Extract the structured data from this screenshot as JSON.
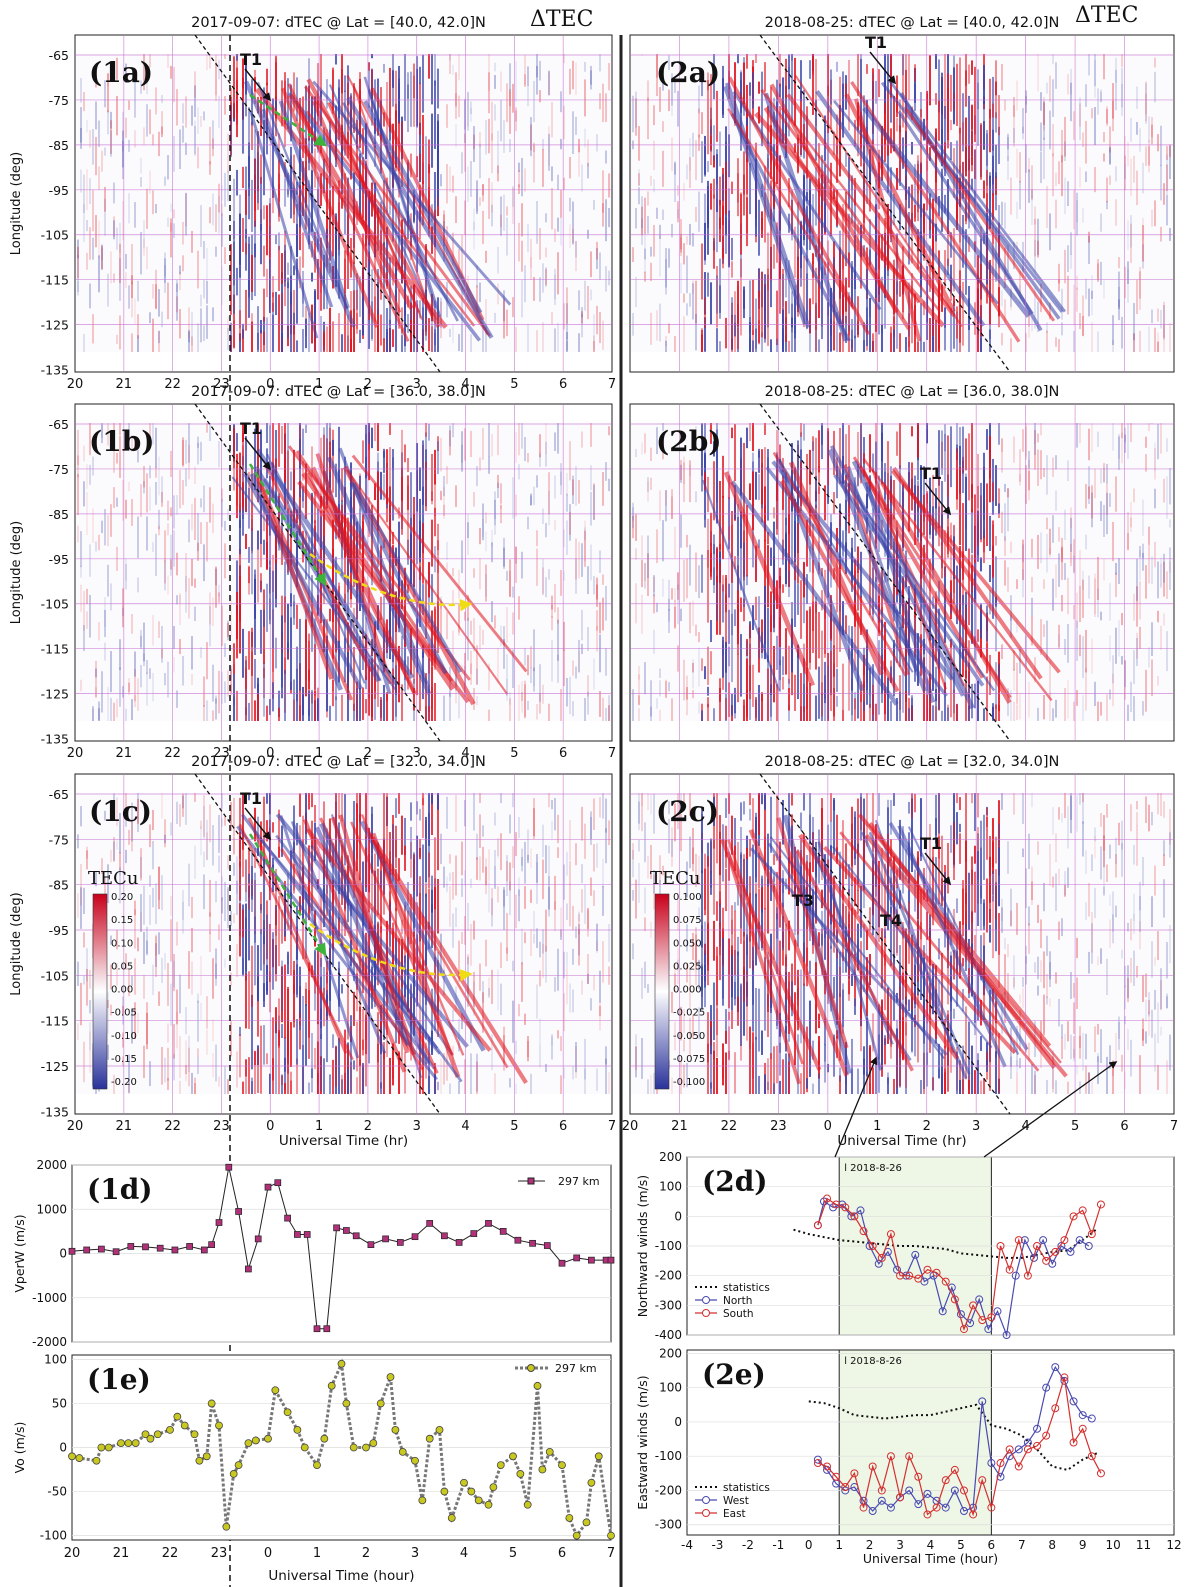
{
  "colors": {
    "red": "#e0141e",
    "blue": "#3a44a8",
    "grid": "#c86ed2",
    "green": "#3cb43c",
    "yellow": "#f0dc14",
    "statistics": "#111111",
    "north_west": "#4a4ab0",
    "south_east": "#d43030",
    "vperw": "#b0307a",
    "vo_marker": "#c8c820",
    "shade": "#eef6e6"
  },
  "delta_tec_label": "ΔTEC",
  "colorbar_label": "TECu",
  "chart_data": [
    {
      "id": "1a",
      "type": "heatmap",
      "panel_label": "(1a)",
      "title": "2017-09-07: dTEC @   Lat = [40.0, 42.0]N",
      "ylabel": "Longitude (deg)",
      "xlabel": "",
      "x_ticks": [
        "20",
        "21",
        "22",
        "23",
        "0",
        "1",
        "2",
        "3",
        "4",
        "5",
        "6",
        "7"
      ],
      "y_ticks": [
        "-65",
        "-75",
        "-85",
        "-95",
        "-105",
        "-115",
        "-125",
        "-135"
      ],
      "ylim": [
        -135,
        -60
      ],
      "annotations": [
        "T1"
      ]
    },
    {
      "id": "1b",
      "type": "heatmap",
      "panel_label": "(1b)",
      "title": "2017-09-07: dTEC @   Lat = [36.0, 38.0]N",
      "ylabel": "Longitude (deg)",
      "xlabel": "",
      "x_ticks": [
        "20",
        "21",
        "22",
        "23",
        "0",
        "1",
        "2",
        "3",
        "4",
        "5",
        "6",
        "7"
      ],
      "y_ticks": [
        "-65",
        "-75",
        "-85",
        "-95",
        "-105",
        "-115",
        "-125",
        "-135"
      ],
      "ylim": [
        -135,
        -60
      ],
      "annotations": [
        "T1"
      ]
    },
    {
      "id": "1c",
      "type": "heatmap",
      "panel_label": "(1c)",
      "title": "2017-09-07: dTEC @   Lat = [32.0, 34.0]N",
      "ylabel": "Longitude (deg)",
      "xlabel": "Universal Time (hr)",
      "x_ticks": [
        "20",
        "21",
        "22",
        "23",
        "0",
        "1",
        "2",
        "3",
        "4",
        "5",
        "6",
        "7"
      ],
      "y_ticks": [
        "-65",
        "-75",
        "-85",
        "-95",
        "-105",
        "-115",
        "-125",
        "-135"
      ],
      "ylim": [
        -135,
        -60
      ],
      "colorbar_ticks": [
        "0.20",
        "0.15",
        "0.10",
        "0.05",
        "0.00",
        "-0.05",
        "-0.10",
        "-0.15",
        "-0.20"
      ],
      "annotations": [
        "T1"
      ]
    },
    {
      "id": "2a",
      "type": "heatmap",
      "panel_label": "(2a)",
      "title": "2018-08-25: dTEC @   Lat = [40.0, 42.0]N",
      "annotations": [
        "T1"
      ]
    },
    {
      "id": "2b",
      "type": "heatmap",
      "panel_label": "(2b)",
      "title": "2018-08-25: dTEC @   Lat = [36.0, 38.0]N",
      "annotations": [
        "T1"
      ]
    },
    {
      "id": "2c",
      "type": "heatmap",
      "panel_label": "(2c)",
      "title": "2018-08-25: dTEC @   Lat = [32.0, 34.0]N",
      "xlabel": "Universal Time (hr)",
      "x_ticks": [
        "20",
        "21",
        "22",
        "23",
        "0",
        "1",
        "2",
        "3",
        "4",
        "5",
        "6",
        "7"
      ],
      "colorbar_ticks": [
        "0.100",
        "0.075",
        "0.050",
        "0.025",
        "0.000",
        "-0.025",
        "-0.050",
        "-0.075",
        "-0.100"
      ],
      "annotations": [
        "T1",
        "T3",
        "T4"
      ]
    },
    {
      "id": "1d",
      "type": "line",
      "panel_label": "(1d)",
      "ylabel": "VperW (m/s)",
      "ylim": [
        -2000,
        2000
      ],
      "y_ticks": [
        "2000",
        "1000",
        "0",
        "-1000",
        "-2000"
      ],
      "series": [
        {
          "name": "297 km",
          "x": [
            20,
            20.3,
            20.6,
            20.9,
            21.2,
            21.5,
            21.8,
            22.1,
            22.4,
            22.7,
            22.85,
            23,
            23.2,
            23.4,
            23.6,
            23.8,
            24,
            24.2,
            24.4,
            24.6,
            24.8,
            25.0,
            25.2,
            25.4,
            25.6,
            25.8,
            26.1,
            26.4,
            26.7,
            27.0,
            27.3,
            27.6,
            27.9,
            28.2,
            28.5,
            28.8,
            29.1,
            29.4,
            29.7,
            30.0,
            30.3,
            30.6,
            30.9,
            31.0
          ],
          "values": [
            50,
            80,
            100,
            40,
            160,
            150,
            120,
            80,
            160,
            80,
            200,
            700,
            1950,
            950,
            -350,
            330,
            1500,
            1600,
            800,
            430,
            430,
            -1700,
            -1700,
            580,
            520,
            400,
            200,
            330,
            250,
            380,
            680,
            400,
            250,
            450,
            680,
            500,
            300,
            230,
            180,
            -220,
            -100,
            -150,
            -150,
            -150
          ]
        }
      ]
    },
    {
      "id": "1e",
      "type": "line",
      "panel_label": "(1e)",
      "ylabel": "Vo (m/s)",
      "xlabel": "Universal Time (hour)",
      "ylim": [
        -105,
        105
      ],
      "y_ticks": [
        "100",
        "50",
        "0",
        "-50",
        "-100"
      ],
      "x_ticks": [
        "20",
        "21",
        "22",
        "23",
        "0",
        "1",
        "2",
        "3",
        "4",
        "5",
        "6",
        "7"
      ],
      "series": [
        {
          "name": "297 km",
          "x": [
            20,
            20.15,
            20.5,
            20.6,
            20.75,
            21.0,
            21.15,
            21.3,
            21.5,
            21.6,
            21.75,
            22.0,
            22.15,
            22.3,
            22.5,
            22.6,
            22.75,
            22.85,
            23.0,
            23.15,
            23.3,
            23.4,
            23.6,
            23.75,
            24.0,
            24.15,
            24.4,
            24.6,
            24.75,
            25.0,
            25.15,
            25.3,
            25.5,
            25.6,
            25.75,
            26.0,
            26.15,
            26.3,
            26.5,
            26.6,
            26.75,
            27.0,
            27.15,
            27.3,
            27.5,
            27.6,
            27.75,
            28.0,
            28.15,
            28.3,
            28.5,
            28.6,
            28.75,
            29.0,
            29.15,
            29.3,
            29.5,
            29.6,
            29.75,
            30.0,
            30.15,
            30.3,
            30.5,
            30.6,
            30.75,
            31.0
          ],
          "values": [
            -10,
            -12,
            -15,
            0,
            0,
            5,
            5,
            5,
            15,
            10,
            15,
            20,
            35,
            25,
            15,
            -15,
            -10,
            50,
            25,
            -90,
            -30,
            -20,
            5,
            8,
            10,
            65,
            40,
            20,
            0,
            -20,
            10,
            70,
            95,
            50,
            0,
            0,
            5,
            50,
            80,
            20,
            -5,
            -15,
            -60,
            10,
            20,
            -50,
            -80,
            -40,
            -50,
            -60,
            -65,
            -45,
            -20,
            -10,
            -30,
            -65,
            70,
            -25,
            -5,
            -20,
            -80,
            -100,
            -85,
            -40,
            -10,
            -100
          ]
        }
      ]
    },
    {
      "id": "2d",
      "type": "line",
      "panel_label": "(2d)",
      "date_label": "l 2018-8-26",
      "ylabel": "Northward winds (m/s)",
      "ylim": [
        -400,
        200
      ],
      "y_ticks": [
        "200",
        "100",
        "0",
        "-100",
        "-200",
        "-300",
        "-400"
      ],
      "shaded_interval": [
        1,
        6
      ],
      "series": [
        {
          "name": "statistics",
          "x": [
            -0.5,
            0,
            0.5,
            1,
            1.5,
            2,
            2.5,
            3,
            3.5,
            4,
            4.5,
            5,
            5.5,
            6,
            6.5,
            7,
            7.5,
            8,
            8.5,
            9,
            9.5
          ],
          "values": [
            -45,
            -60,
            -70,
            -80,
            -85,
            -90,
            -95,
            -100,
            -100,
            -105,
            -110,
            -125,
            -130,
            -135,
            -140,
            -140,
            -130,
            -120,
            -115,
            -80,
            -40
          ]
        },
        {
          "name": "North",
          "x": [
            0.3,
            0.5,
            0.8,
            1.1,
            1.4,
            1.7,
            2.0,
            2.3,
            2.6,
            2.9,
            3.2,
            3.5,
            3.8,
            4.1,
            4.4,
            4.7,
            5.0,
            5.3,
            5.6,
            5.9,
            6.2,
            6.5,
            6.8,
            7.1,
            7.4,
            7.7,
            8.0,
            8.3,
            8.6,
            8.9,
            9.2
          ],
          "values": [
            -30,
            50,
            30,
            40,
            0,
            20,
            -100,
            -160,
            -120,
            -180,
            -200,
            -130,
            -220,
            -200,
            -320,
            -240,
            -330,
            -360,
            -280,
            -380,
            -320,
            -400,
            -200,
            -80,
            -140,
            -80,
            -160,
            -100,
            -120,
            -80,
            -100
          ]
        },
        {
          "name": "South",
          "x": [
            0.3,
            0.6,
            0.9,
            1.2,
            1.5,
            1.8,
            2.1,
            2.4,
            2.7,
            3.0,
            3.3,
            3.6,
            3.9,
            4.2,
            4.5,
            4.8,
            5.1,
            5.4,
            5.7,
            6.0,
            6.3,
            6.6,
            6.9,
            7.2,
            7.5,
            7.8,
            8.1,
            8.4,
            8.7,
            9.0,
            9.3,
            9.6
          ],
          "values": [
            -30,
            60,
            40,
            30,
            0,
            -50,
            -100,
            -140,
            -60,
            -200,
            -200,
            -210,
            -180,
            -190,
            -220,
            -280,
            -380,
            -300,
            -350,
            -340,
            -100,
            -180,
            -80,
            -200,
            -100,
            -150,
            -120,
            -80,
            0,
            20,
            -60,
            40
          ]
        }
      ]
    },
    {
      "id": "2e",
      "type": "line",
      "panel_label": "(2e)",
      "date_label": "l 2018-8-26",
      "ylabel": "Eastward winds (m/s)",
      "xlabel": "Universal Time (hour)",
      "ylim": [
        -330,
        210
      ],
      "y_ticks": [
        "200",
        "100",
        "0",
        "-100",
        "-200",
        "-300"
      ],
      "x_ticks": [
        "-4",
        "-3",
        "-2",
        "-1",
        "0",
        "1",
        "2",
        "3",
        "4",
        "5",
        "6",
        "7",
        "8",
        "9",
        "10",
        "11",
        "12"
      ],
      "shaded_interval": [
        1,
        6
      ],
      "series": [
        {
          "name": "statistics",
          "x": [
            0,
            0.5,
            1,
            1.5,
            2,
            2.5,
            3,
            3.5,
            4,
            4.5,
            5,
            5.5,
            6,
            6.5,
            7,
            7.5,
            8,
            8.5,
            9,
            9.5
          ],
          "values": [
            60,
            55,
            40,
            20,
            15,
            10,
            15,
            20,
            20,
            30,
            40,
            50,
            -10,
            -20,
            -40,
            -80,
            -130,
            -140,
            -110,
            -90
          ]
        },
        {
          "name": "West",
          "x": [
            0.3,
            0.6,
            0.9,
            1.2,
            1.5,
            1.8,
            2.1,
            2.4,
            2.7,
            3.0,
            3.3,
            3.6,
            3.9,
            4.2,
            4.5,
            4.8,
            5.1,
            5.4,
            5.7,
            6.0,
            6.3,
            6.6,
            6.9,
            7.2,
            7.5,
            7.8,
            8.1,
            8.4,
            8.7,
            9.0,
            9.3
          ],
          "values": [
            -110,
            -140,
            -180,
            -200,
            -190,
            -230,
            -260,
            -230,
            -250,
            -220,
            -200,
            -240,
            -210,
            -230,
            -250,
            -200,
            -260,
            -250,
            60,
            -120,
            -160,
            -100,
            -80,
            -60,
            -20,
            100,
            160,
            120,
            60,
            20,
            10
          ]
        },
        {
          "name": "East",
          "x": [
            0.3,
            0.6,
            0.9,
            1.2,
            1.5,
            1.8,
            2.1,
            2.4,
            2.7,
            3.0,
            3.3,
            3.6,
            3.9,
            4.2,
            4.5,
            4.8,
            5.1,
            5.4,
            5.7,
            6.0,
            6.3,
            6.6,
            6.9,
            7.2,
            7.5,
            7.8,
            8.1,
            8.4,
            8.7,
            9.0,
            9.3,
            9.6
          ],
          "values": [
            -120,
            -130,
            -160,
            -190,
            -150,
            -250,
            -130,
            -200,
            -100,
            -220,
            -100,
            -160,
            -270,
            -250,
            -170,
            -140,
            -200,
            -270,
            -170,
            -250,
            -120,
            -80,
            -130,
            -80,
            -70,
            -40,
            40,
            130,
            -60,
            -20,
            -100,
            -150
          ]
        }
      ]
    }
  ]
}
